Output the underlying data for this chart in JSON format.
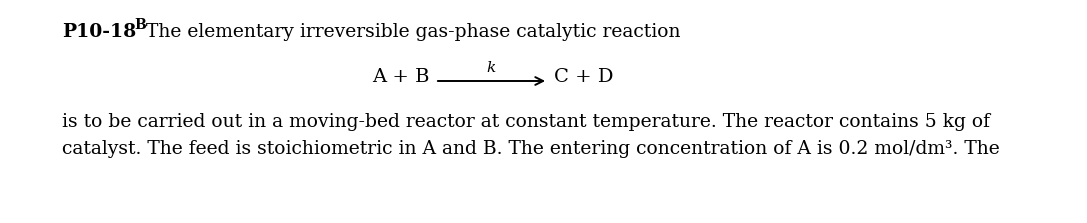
{
  "background_color": "#ffffff",
  "problem_label": "P10-18",
  "problem_subscript": "B",
  "line1": "The elementary irreversible gas-phase catalytic reaction",
  "body_text_line1": "is to be carried out in a moving-bed reactor at constant temperature. The reactor contains 5 kg of",
  "body_text_line2": "catalyst. The feed is stoichiometric in A and B. The entering concentration of A is 0.2 mol/dm³. The",
  "reaction_left": "A + B",
  "reaction_right": "C + D",
  "reaction_k": "k",
  "fontsize_header": 13.5,
  "fontsize_body": 13.5,
  "fontsize_reaction": 14,
  "fontsize_k": 11,
  "fontsize_subscript": 10
}
